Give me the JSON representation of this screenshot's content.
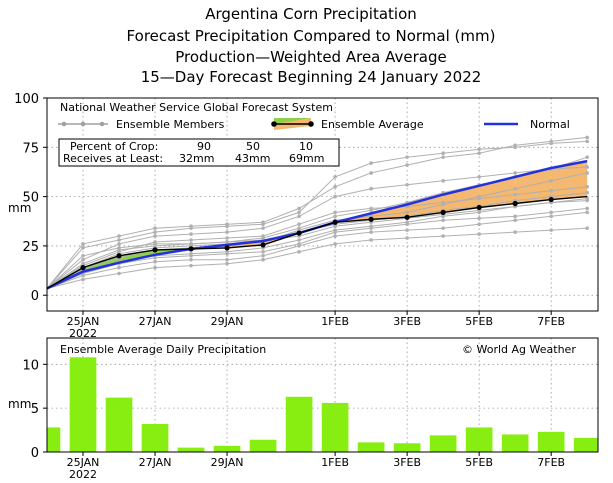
{
  "titles": [
    "Argentina Corn Precipitation",
    "Forecast Precipitation Compared to Normal (mm)",
    "Production—Weighted Area Average",
    "15—Day Forecast Beginning 24 January 2022"
  ],
  "colors": {
    "normal": "#2233dd",
    "ensemble_avg": "#000000",
    "member": "#b0b0b0",
    "fill_above": "#8fd04a",
    "fill_below": "#f5b870",
    "bar": "#88ee11",
    "grid": "#999999"
  },
  "chart_data": [
    {
      "type": "line",
      "header": "National Weather Service Global Forecast System",
      "ylabel": "mm",
      "ylim": [
        -8,
        100
      ],
      "yticks": [
        0,
        25,
        50,
        75,
        100
      ],
      "x": [
        0,
        1,
        2,
        3,
        4,
        5,
        6,
        7,
        8,
        9,
        10,
        11,
        12,
        13,
        14,
        15
      ],
      "xlim": [
        0,
        15.3
      ],
      "xticks": [
        {
          "x": 1,
          "label": "25JAN",
          "sub": "2022"
        },
        {
          "x": 3,
          "label": "27JAN",
          "sub": ""
        },
        {
          "x": 5,
          "label": "29JAN",
          "sub": ""
        },
        {
          "x": 8,
          "label": "1FEB",
          "sub": ""
        },
        {
          "x": 10,
          "label": "3FEB",
          "sub": ""
        },
        {
          "x": 12,
          "label": "5FEB",
          "sub": ""
        },
        {
          "x": 14,
          "label": "7FEB",
          "sub": ""
        }
      ],
      "grid": true,
      "legend": {
        "members_label": "Ensemble Members",
        "average_label": "Ensemble Average",
        "normal_label": "Normal",
        "placement": "top"
      },
      "percent_table": {
        "row1_label": "Percent of Crop:",
        "row2_label": "Receives at Least:",
        "percents": [
          "90",
          "50",
          "10"
        ],
        "amounts": [
          "32mm",
          "43mm",
          "69mm"
        ]
      },
      "series": [
        {
          "name": "Ensemble Average",
          "values": [
            3.4,
            14,
            20,
            23,
            23.5,
            24,
            25.5,
            31.5,
            37,
            38.5,
            39.5,
            42,
            44.5,
            46.5,
            48.5,
            50
          ]
        },
        {
          "name": "Normal",
          "values": [
            3.4,
            12,
            16.5,
            20.5,
            23.5,
            25.5,
            27.5,
            31.5,
            37,
            41.5,
            46,
            51,
            55.5,
            60,
            64.5,
            68
          ]
        }
      ],
      "members": [
        [
          3.4,
          10,
          14,
          17,
          18,
          18,
          20,
          25,
          30,
          32,
          33,
          34,
          36,
          38,
          40,
          42
        ],
        [
          3.4,
          12,
          17,
          20,
          21,
          22,
          24,
          28,
          33,
          35,
          37,
          40,
          42,
          45,
          47,
          48
        ],
        [
          3.4,
          15,
          22,
          27,
          28,
          29,
          30,
          36,
          42,
          44,
          45,
          47,
          49,
          51,
          53,
          55
        ],
        [
          3.4,
          18,
          26,
          30,
          31,
          32,
          34,
          40,
          50,
          54,
          56,
          58,
          60,
          62,
          64,
          65
        ],
        [
          3.4,
          24,
          28,
          32,
          34,
          35,
          36,
          42,
          60,
          67,
          70,
          72,
          74,
          75,
          77,
          78
        ],
        [
          3.4,
          8,
          11,
          14,
          15,
          16,
          18,
          22,
          26,
          28,
          29,
          30,
          31,
          32,
          33,
          34
        ],
        [
          3.4,
          13,
          19,
          23,
          24,
          25,
          27,
          33,
          38,
          40,
          42,
          46,
          50,
          54,
          58,
          62
        ],
        [
          3.4,
          16,
          23,
          25,
          26,
          27,
          29,
          34,
          40,
          43,
          47,
          52,
          56,
          60,
          64,
          70
        ],
        [
          3.4,
          20,
          24,
          26,
          26,
          27,
          28,
          30,
          35,
          37,
          39,
          41,
          43,
          45,
          47,
          49
        ],
        [
          3.4,
          11,
          16,
          19,
          20,
          21,
          22,
          26,
          32,
          34,
          36,
          38,
          39,
          40,
          42,
          44
        ],
        [
          3.4,
          26,
          30,
          34,
          35,
          36,
          37,
          44,
          55,
          62,
          66,
          70,
          72,
          76,
          78,
          80
        ],
        [
          3.4,
          14,
          21,
          24,
          25,
          26,
          28,
          32,
          36,
          38,
          40,
          43,
          45,
          48,
          50,
          52
        ]
      ]
    },
    {
      "type": "bar",
      "header": "Ensemble Average Daily Precipitation",
      "credit": "© World Ag Weather",
      "ylabel": "mm",
      "ylim": [
        0,
        13
      ],
      "yticks": [
        0,
        5,
        10
      ],
      "x": [
        0,
        1,
        2,
        3,
        4,
        5,
        6,
        7,
        8,
        9,
        10,
        11,
        12,
        13,
        14,
        15
      ],
      "values": [
        2.8,
        10.8,
        6.2,
        3.2,
        0.5,
        0.7,
        1.4,
        6.3,
        5.6,
        1.1,
        1.0,
        1.9,
        2.8,
        2.0,
        2.3,
        1.6
      ],
      "grid": true
    }
  ]
}
